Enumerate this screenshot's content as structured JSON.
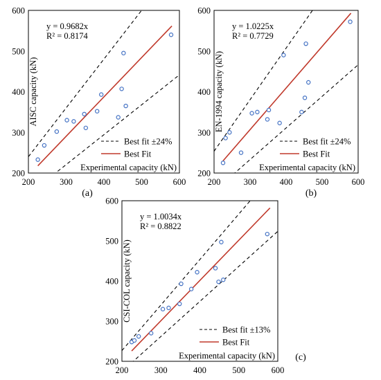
{
  "chart_data": [
    {
      "type": "scatter",
      "panel_label": "(a)",
      "ylabel": "AISC capacity (kN)",
      "xlabel": "Experimental capacity (kN)",
      "xlim": [
        200,
        600
      ],
      "ylim": [
        200,
        600
      ],
      "xticks": [
        200,
        300,
        400,
        500,
        600
      ],
      "yticks": [
        200,
        300,
        400,
        500,
        600
      ],
      "equation": "y = 0.9682x",
      "r2": "R² = 0.8174",
      "slope": 0.9682,
      "band": 0.24,
      "grid": false,
      "legend_position": "bottom-right",
      "legend": {
        "band": "Best fit ±24%",
        "fit": "Best Fit"
      },
      "points": [
        [
          225,
          233
        ],
        [
          242,
          268
        ],
        [
          275,
          302
        ],
        [
          302,
          330
        ],
        [
          320,
          327
        ],
        [
          348,
          345
        ],
        [
          352,
          311
        ],
        [
          382,
          352
        ],
        [
          393,
          393
        ],
        [
          438,
          337
        ],
        [
          447,
          407
        ],
        [
          452,
          495
        ],
        [
          458,
          365
        ],
        [
          578,
          540
        ]
      ]
    },
    {
      "type": "scatter",
      "panel_label": "(b)",
      "ylabel": "EN-1994 capacity (kN)",
      "xlabel": "Experimental capacity (kN)",
      "xlim": [
        200,
        600
      ],
      "ylim": [
        200,
        600
      ],
      "xticks": [
        200,
        300,
        400,
        500,
        600
      ],
      "yticks": [
        200,
        300,
        400,
        500,
        600
      ],
      "equation": "y = 1.0225x",
      "r2": "R² = 0.7729",
      "slope": 1.0225,
      "band": 0.24,
      "grid": false,
      "legend_position": "bottom-right",
      "legend": {
        "band": "Best fit ±24%",
        "fit": "Best Fit"
      },
      "points": [
        [
          225,
          225
        ],
        [
          232,
          286
        ],
        [
          243,
          300
        ],
        [
          275,
          250
        ],
        [
          305,
          347
        ],
        [
          320,
          350
        ],
        [
          348,
          332
        ],
        [
          352,
          355
        ],
        [
          382,
          323
        ],
        [
          393,
          490
        ],
        [
          443,
          350
        ],
        [
          452,
          385
        ],
        [
          455,
          518
        ],
        [
          462,
          423
        ],
        [
          578,
          572
        ]
      ]
    },
    {
      "type": "scatter",
      "panel_label": "(c)",
      "ylabel": "CSI-COL capacity (kN)",
      "xlabel": "Experimental capacity (kN)",
      "xlim": [
        200,
        600
      ],
      "ylim": [
        200,
        600
      ],
      "xticks": [
        200,
        300,
        400,
        500,
        600
      ],
      "yticks": [
        200,
        300,
        400,
        500,
        600
      ],
      "equation": "y = 1.0034x",
      "r2": "R² = 0.8822",
      "slope": 1.0034,
      "band": 0.13,
      "grid": false,
      "legend_position": "bottom-right",
      "legend": {
        "band": "Best fit ±13%",
        "fit": "Best Fit"
      },
      "points": [
        [
          225,
          248
        ],
        [
          232,
          252
        ],
        [
          243,
          262
        ],
        [
          275,
          270
        ],
        [
          305,
          330
        ],
        [
          320,
          333
        ],
        [
          348,
          343
        ],
        [
          352,
          393
        ],
        [
          378,
          380
        ],
        [
          393,
          422
        ],
        [
          440,
          432
        ],
        [
          448,
          398
        ],
        [
          455,
          497
        ],
        [
          460,
          403
        ],
        [
          573,
          517
        ]
      ]
    }
  ]
}
